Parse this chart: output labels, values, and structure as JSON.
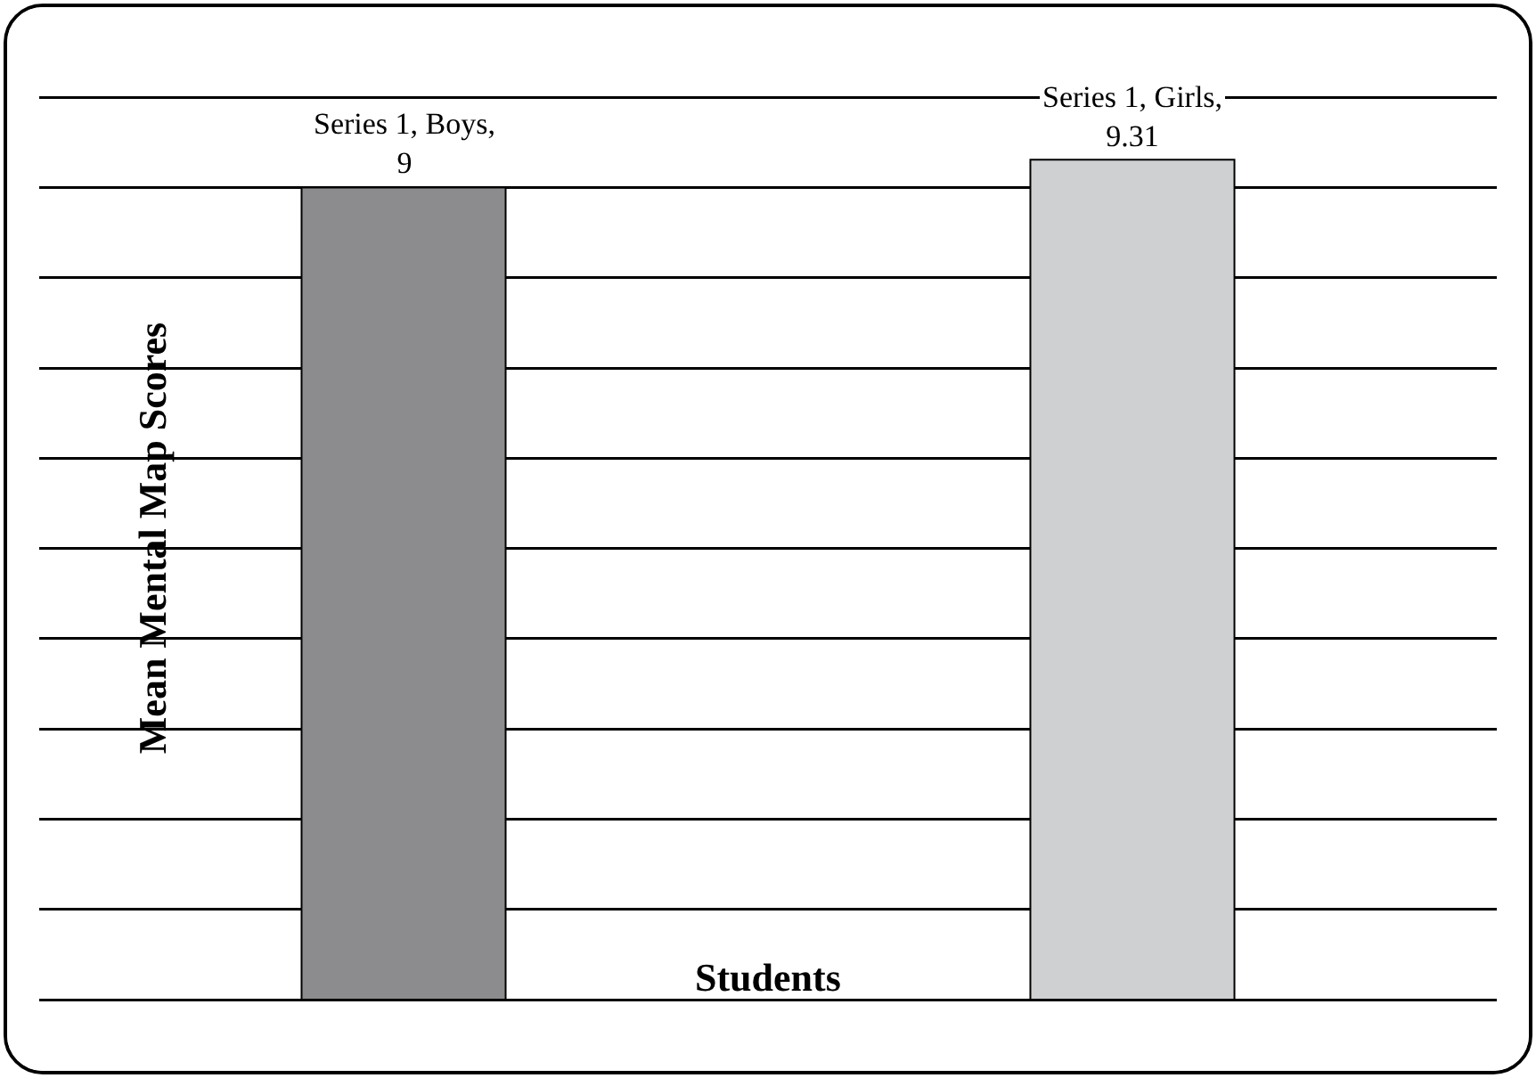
{
  "chart_data": {
    "type": "bar",
    "xlabel": "Students",
    "ylabel": "Mean Mental Map Scores",
    "categories": [
      null,
      null
    ],
    "values": [
      9,
      9.31
    ],
    "colors": [
      "#8c8c8e",
      "#cfd0d2"
    ],
    "value_labels": [
      "Series 1, Boys, 9",
      "Series 1, Girls, 9.31"
    ],
    "ylim": [
      -0.75,
      11
    ],
    "yticks": [
      {
        "value": 0,
        "label": null
      },
      {
        "value": 1,
        "label": null
      },
      {
        "value": 2,
        "label": null
      },
      {
        "value": 3,
        "label": null
      },
      {
        "value": 4,
        "label": null
      },
      {
        "value": 5,
        "label": null
      },
      {
        "value": 6,
        "label": null
      },
      {
        "value": 7,
        "label": null
      },
      {
        "value": 8,
        "label": null
      },
      {
        "value": 9,
        "label": null
      },
      {
        "value": 10,
        "label": null
      }
    ],
    "grid": "y"
  }
}
